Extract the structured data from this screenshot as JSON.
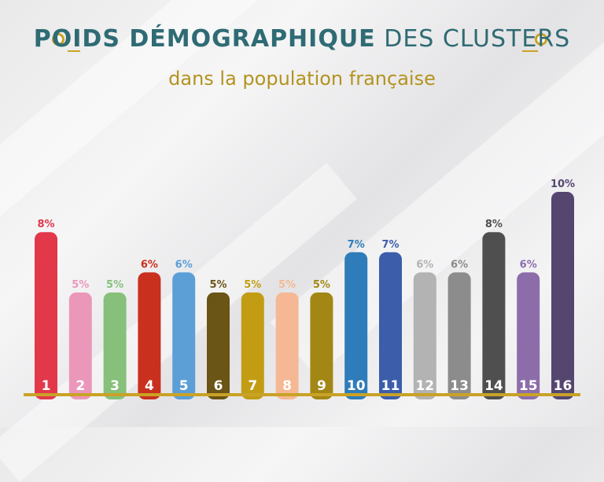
{
  "header": {
    "title_bold": "POIDS DÉMOGRAPHIQUE",
    "title_light": "DES CLUSTERS",
    "subtitle": "dans la population française"
  },
  "colors": {
    "accent_gold": "#c9a227",
    "title_teal": "#2f6b74"
  },
  "chart_data": {
    "type": "bar",
    "title": "POIDS DÉMOGRAPHIQUE DES CLUSTERS",
    "subtitle": "dans la population française",
    "xlabel": "",
    "ylabel": "",
    "unit": "%",
    "ylim": [
      0,
      10
    ],
    "grid": false,
    "legend": "none",
    "categories": [
      "1",
      "2",
      "3",
      "4",
      "5",
      "6",
      "7",
      "8",
      "9",
      "10",
      "11",
      "12",
      "13",
      "14",
      "15",
      "16"
    ],
    "values": [
      8,
      5,
      5,
      6,
      6,
      5,
      5,
      5,
      5,
      7,
      7,
      6,
      6,
      8,
      6,
      10
    ],
    "value_labels": [
      "8%",
      "5%",
      "5%",
      "6%",
      "6%",
      "5%",
      "5%",
      "5%",
      "5%",
      "7%",
      "7%",
      "6%",
      "6%",
      "8%",
      "6%",
      "10%"
    ],
    "colors": [
      "#e2384a",
      "#eb97b9",
      "#86c07a",
      "#c9301e",
      "#5b9fd6",
      "#6a5416",
      "#c29d14",
      "#f6b894",
      "#a38715",
      "#2e7cb9",
      "#3b5daa",
      "#b3b3b3",
      "#8c8c8c",
      "#4f4f4f",
      "#8c6daa",
      "#554670"
    ]
  }
}
